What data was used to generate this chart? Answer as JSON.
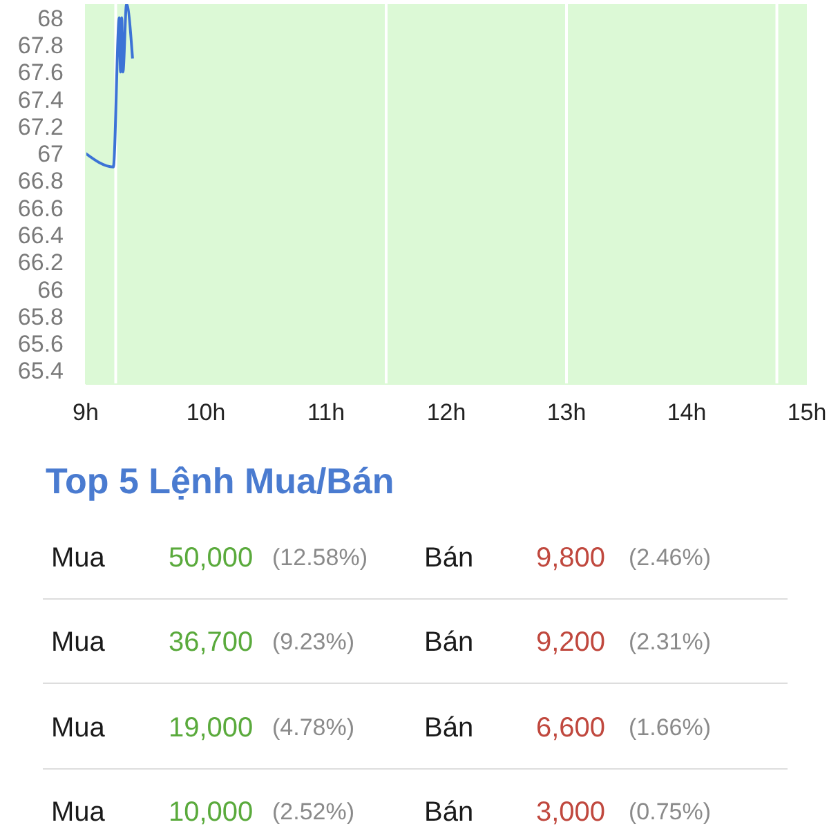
{
  "chart_data": {
    "type": "line",
    "x": [
      9,
      9.23,
      9.28,
      9.29,
      9.3,
      9.31,
      9.34,
      9.39
    ],
    "values": [
      67,
      66.9,
      68,
      67.6,
      68,
      67.6,
      68.1,
      67.7
    ],
    "color": "#3c73d6",
    "xlim": [
      9,
      15
    ],
    "xticks": [
      {
        "value": 9,
        "label": "9h"
      },
      {
        "value": 10,
        "label": "10h"
      },
      {
        "value": 11,
        "label": "11h"
      },
      {
        "value": 12,
        "label": "12h"
      },
      {
        "value": 13,
        "label": "13h"
      },
      {
        "value": 14,
        "label": "14h"
      },
      {
        "value": 15,
        "label": "15h"
      }
    ],
    "ylim": [
      65.3,
      68.1
    ],
    "yticks": [
      65.4,
      65.6,
      65.8,
      66,
      66.2,
      66.4,
      66.6,
      66.8,
      67,
      67.2,
      67.4,
      67.6,
      67.8,
      68
    ],
    "ref_lines": [
      {
        "axis": "x",
        "value": 9.25,
        "color": "#ffffff"
      },
      {
        "axis": "x",
        "value": 11.5,
        "color": "#ffffff"
      },
      {
        "axis": "x",
        "value": 13,
        "color": "#ffffff"
      },
      {
        "axis": "x",
        "value": 14.75,
        "color": "#ffffff"
      }
    ],
    "annotations": [
      "Top 5 Lệnh Mua/Bán",
      "Mua",
      "50,000",
      "(12.58%)",
      "Bán",
      "9,800",
      "(2.46%)",
      "Mua",
      "36,700",
      "(9.23%)",
      "Bán",
      "9,200",
      "(2.31%)",
      "Mua",
      "19,000",
      "(4.78%)",
      "Bán",
      "6,600",
      "(1.66%)",
      "Mua",
      "10,000",
      "(2.52%)",
      "Bán",
      "3,000",
      "(0.75%)"
    ]
  }
}
